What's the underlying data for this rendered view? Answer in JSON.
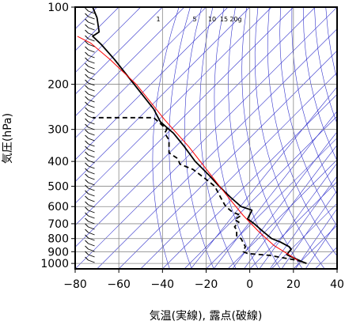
{
  "chart_data": {
    "type": "line",
    "title": "",
    "xlabel": "気温(実線), 露点(破線)",
    "ylabel": "気圧(hPa)",
    "x_axis": {
      "range": [
        -80,
        40
      ],
      "ticks": [
        -80,
        -60,
        -40,
        -20,
        0,
        20,
        40
      ],
      "tick_labels": [
        "−80",
        "−60",
        "−40",
        "−20",
        "0",
        "20",
        "40"
      ]
    },
    "y_axis": {
      "scale": "log",
      "reversed": true,
      "range": [
        1050,
        100
      ],
      "ticks": [
        100,
        200,
        300,
        400,
        500,
        600,
        700,
        800,
        900,
        1000
      ],
      "tick_labels": [
        "100",
        "200",
        "300",
        "400",
        "500",
        "600",
        "700",
        "800",
        "900",
        "1000"
      ]
    },
    "grid": true,
    "mixing_ratio_labels": {
      "values": [
        1,
        5,
        10,
        15,
        20
      ],
      "labels": [
        "1",
        "5",
        "10",
        "15",
        "20g"
      ]
    },
    "series": [
      {
        "style": "solid",
        "color": "#000000",
        "points": [
          [
            26,
            1000
          ],
          [
            24,
            985
          ],
          [
            20,
            950
          ],
          [
            17,
            925
          ],
          [
            18,
            900
          ],
          [
            19,
            880
          ],
          [
            18,
            860
          ],
          [
            14,
            825
          ],
          [
            10,
            800
          ],
          [
            6,
            750
          ],
          [
            2,
            700
          ],
          [
            -1,
            670
          ],
          [
            1,
            620
          ],
          [
            -4,
            600
          ],
          [
            -9,
            550
          ],
          [
            -14,
            500
          ],
          [
            -19,
            450
          ],
          [
            -25,
            400
          ],
          [
            -30,
            350
          ],
          [
            -35,
            310
          ],
          [
            -37,
            300
          ],
          [
            -41,
            280
          ],
          [
            -44,
            250
          ],
          [
            -53,
            200
          ],
          [
            -62,
            160
          ],
          [
            -68,
            140
          ],
          [
            -72,
            130
          ],
          [
            -69,
            125
          ],
          [
            -70,
            110
          ],
          [
            -72,
            100
          ]
        ]
      },
      {
        "style": "solid",
        "color": "#ff0000",
        "points": [
          [
            23,
            985
          ],
          [
            18,
            925
          ],
          [
            11,
            850
          ],
          [
            4,
            750
          ],
          [
            -3,
            650
          ],
          [
            -10,
            550
          ],
          [
            -18,
            450
          ],
          [
            -28,
            350
          ],
          [
            -39,
            275
          ],
          [
            -52,
            200
          ],
          [
            -64,
            160
          ],
          [
            -73,
            138
          ],
          [
            -79,
            130
          ]
        ]
      },
      {
        "style": "dashed",
        "color": "#000000",
        "points": [
          [
            24,
            985
          ],
          [
            21,
            970
          ],
          [
            15,
            950
          ],
          [
            9,
            930
          ],
          [
            -1,
            915
          ],
          [
            -3,
            900
          ],
          [
            -2,
            860
          ],
          [
            -4,
            800
          ],
          [
            -6,
            780
          ],
          [
            -6,
            740
          ],
          [
            -7,
            720
          ],
          [
            -5,
            690
          ],
          [
            -7,
            675
          ],
          [
            -4,
            650
          ],
          [
            -8,
            630
          ],
          [
            -11,
            600
          ],
          [
            -13,
            560
          ],
          [
            -15,
            520
          ],
          [
            -16,
            500
          ],
          [
            -20,
            470
          ],
          [
            -26,
            430
          ],
          [
            -32,
            410
          ],
          [
            -33,
            390
          ],
          [
            -37,
            370
          ],
          [
            -37,
            330
          ],
          [
            -39,
            310
          ],
          [
            -38,
            300
          ],
          [
            -44,
            270
          ],
          [
            -72,
            270
          ]
        ]
      }
    ]
  }
}
